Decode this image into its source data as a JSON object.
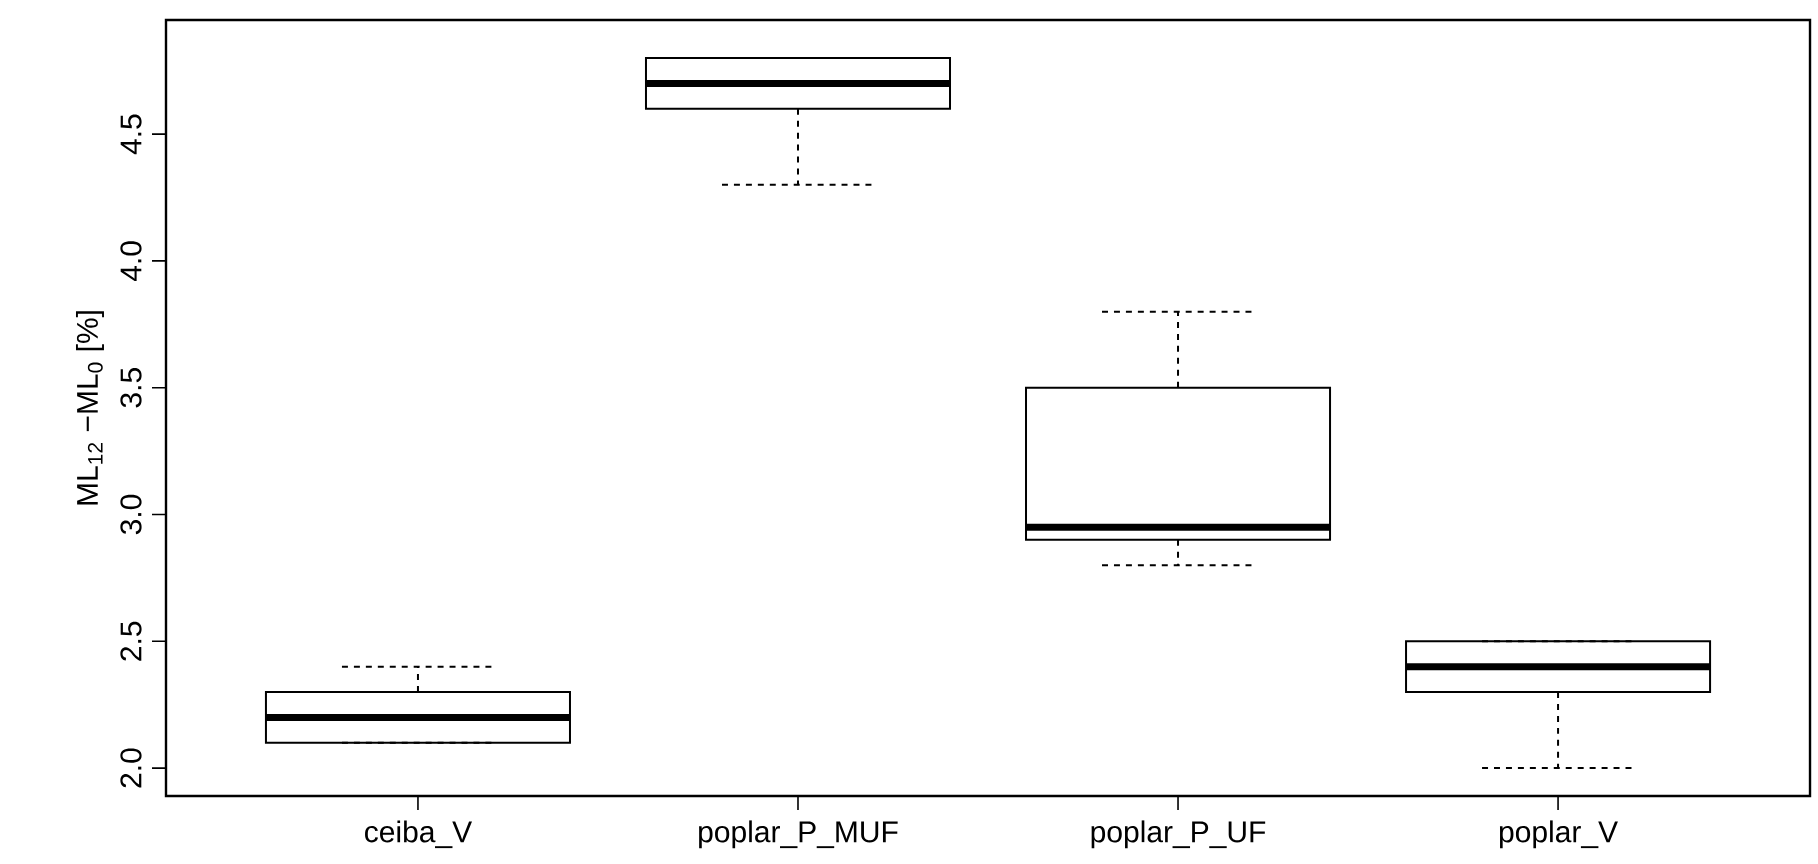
{
  "chart_data": {
    "type": "box",
    "ylabel": "ML$_{12}$ −ML$_{0}$ [%]",
    "categories": [
      "ceiba_V",
      "poplar_P_MUF",
      "poplar_P_UF",
      "poplar_V"
    ],
    "boxes": [
      {
        "low": 2.1,
        "q1": 2.1,
        "median": 2.2,
        "q3": 2.3,
        "high": 2.4
      },
      {
        "low": 4.3,
        "q1": 4.6,
        "median": 4.7,
        "q3": 4.8,
        "high": 4.8
      },
      {
        "low": 2.8,
        "q1": 2.9,
        "median": 2.95,
        "q3": 3.5,
        "high": 3.8
      },
      {
        "low": 2.0,
        "q1": 2.3,
        "median": 2.4,
        "q3": 2.5,
        "high": 2.5
      }
    ],
    "ylim": [
      1.89,
      4.95
    ],
    "yticks": [
      {
        "value": 2,
        "label": "2.0"
      },
      {
        "value": 2.5,
        "label": "2.5"
      },
      {
        "value": 3,
        "label": "3.0"
      },
      {
        "value": 3.5,
        "label": "3.5"
      },
      {
        "value": 4,
        "label": "4.0"
      },
      {
        "value": 4.5,
        "label": "4.5"
      }
    ]
  }
}
